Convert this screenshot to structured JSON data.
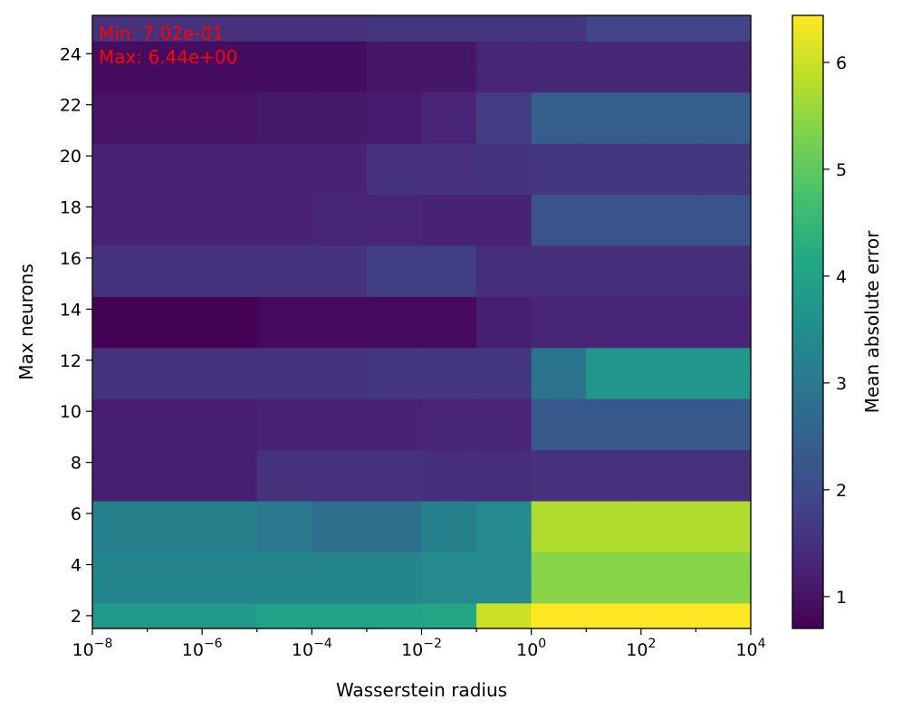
{
  "chart_data": {
    "type": "heatmap",
    "xlabel": "Wasserstein radius",
    "ylabel": "Max neurons",
    "colorbar_label": "Mean absolute error",
    "x_scale": "log",
    "x_edges_log10": [
      -8,
      -7,
      -6,
      -5,
      -4,
      -3,
      -2,
      -1,
      0,
      1,
      2,
      3,
      4
    ],
    "y_rows": [
      2,
      3,
      4,
      5,
      6,
      7,
      8,
      9,
      10,
      11,
      12,
      13,
      14,
      15,
      16,
      17,
      18,
      19,
      20,
      21,
      22,
      23,
      24,
      25
    ],
    "y_range": [
      1.5,
      25.5
    ],
    "x_tick_labels": [
      {
        "exp": -8,
        "base": "10",
        "power": "−8"
      },
      {
        "exp": -6,
        "base": "10",
        "power": "−6"
      },
      {
        "exp": -4,
        "base": "10",
        "power": "−4"
      },
      {
        "exp": -2,
        "base": "10",
        "power": "−2"
      },
      {
        "exp": 0,
        "base": "10",
        "power": "0"
      },
      {
        "exp": 2,
        "base": "10",
        "power": "2"
      },
      {
        "exp": 4,
        "base": "10",
        "power": "4"
      }
    ],
    "y_ticks": [
      2,
      4,
      6,
      8,
      10,
      12,
      14,
      16,
      18,
      20,
      22,
      24
    ],
    "colorbar_range": [
      0.702,
      6.44
    ],
    "colorbar_ticks": [
      1,
      2,
      3,
      4,
      5,
      6
    ],
    "colormap": "viridis",
    "annotations": [
      "Min: 7.02e-01",
      "Max: 6.44e+00"
    ],
    "grid": false,
    "values": [
      [
        3.8,
        3.8,
        3.8,
        4.0,
        4.0,
        4.0,
        4.1,
        6.0,
        6.44,
        6.44,
        6.44,
        6.44
      ],
      [
        3.3,
        3.3,
        3.3,
        3.3,
        3.3,
        3.3,
        3.4,
        3.4,
        5.4,
        5.4,
        5.4,
        5.4
      ],
      [
        3.3,
        3.3,
        3.3,
        3.3,
        3.3,
        3.3,
        3.4,
        3.4,
        5.4,
        5.4,
        5.4,
        5.4
      ],
      [
        3.2,
        3.2,
        3.2,
        3.0,
        2.8,
        2.8,
        3.2,
        3.4,
        5.75,
        5.75,
        5.75,
        5.75
      ],
      [
        3.2,
        3.2,
        3.2,
        3.0,
        2.8,
        2.8,
        3.2,
        3.4,
        5.75,
        5.75,
        5.75,
        5.75
      ],
      [
        1.2,
        1.2,
        1.2,
        1.5,
        1.5,
        1.5,
        1.45,
        1.45,
        1.5,
        1.5,
        1.5,
        1.5
      ],
      [
        1.2,
        1.2,
        1.2,
        1.5,
        1.5,
        1.5,
        1.45,
        1.45,
        1.5,
        1.5,
        1.5,
        1.5
      ],
      [
        1.2,
        1.2,
        1.2,
        1.25,
        1.25,
        1.25,
        1.3,
        1.3,
        2.3,
        2.3,
        2.3,
        2.3
      ],
      [
        1.2,
        1.2,
        1.2,
        1.25,
        1.25,
        1.25,
        1.3,
        1.3,
        2.3,
        2.3,
        2.3,
        2.3
      ],
      [
        1.55,
        1.55,
        1.55,
        1.55,
        1.55,
        1.6,
        1.6,
        1.6,
        2.9,
        3.7,
        3.7,
        3.7
      ],
      [
        1.55,
        1.55,
        1.55,
        1.55,
        1.55,
        1.6,
        1.6,
        1.6,
        2.9,
        3.7,
        3.7,
        3.7
      ],
      [
        0.72,
        0.72,
        0.72,
        0.85,
        0.85,
        0.85,
        0.85,
        1.2,
        1.3,
        1.3,
        1.3,
        1.3
      ],
      [
        0.72,
        0.72,
        0.72,
        0.85,
        0.85,
        0.85,
        0.85,
        1.2,
        1.3,
        1.3,
        1.3,
        1.3
      ],
      [
        1.55,
        1.55,
        1.55,
        1.55,
        1.55,
        1.75,
        1.75,
        1.45,
        1.45,
        1.45,
        1.45,
        1.45
      ],
      [
        1.55,
        1.55,
        1.55,
        1.55,
        1.55,
        1.75,
        1.75,
        1.45,
        1.45,
        1.45,
        1.45,
        1.45
      ],
      [
        1.25,
        1.25,
        1.25,
        1.25,
        1.3,
        1.3,
        1.25,
        1.25,
        2.2,
        2.2,
        2.2,
        2.2
      ],
      [
        1.25,
        1.25,
        1.25,
        1.25,
        1.3,
        1.3,
        1.25,
        1.25,
        2.2,
        2.2,
        2.2,
        2.2
      ],
      [
        1.25,
        1.25,
        1.25,
        1.25,
        1.25,
        1.5,
        1.5,
        1.55,
        1.6,
        1.6,
        1.6,
        1.6
      ],
      [
        1.25,
        1.25,
        1.25,
        1.25,
        1.25,
        1.5,
        1.5,
        1.55,
        1.6,
        1.6,
        1.6,
        1.6
      ],
      [
        1.0,
        1.0,
        1.0,
        1.1,
        1.1,
        1.15,
        1.3,
        1.7,
        2.4,
        2.4,
        2.4,
        2.4
      ],
      [
        1.0,
        1.0,
        1.0,
        1.1,
        1.1,
        1.15,
        1.3,
        1.7,
        2.4,
        2.4,
        2.4,
        2.4
      ],
      [
        0.9,
        0.9,
        0.9,
        0.9,
        0.9,
        1.05,
        1.05,
        1.3,
        1.35,
        1.35,
        1.35,
        1.35
      ],
      [
        0.9,
        0.9,
        0.9,
        0.9,
        0.9,
        1.05,
        1.05,
        1.3,
        1.35,
        1.35,
        1.35,
        1.35
      ],
      [
        1.5,
        1.5,
        1.5,
        1.5,
        1.5,
        1.6,
        1.6,
        1.6,
        1.6,
        1.9,
        1.9,
        1.9
      ]
    ]
  }
}
